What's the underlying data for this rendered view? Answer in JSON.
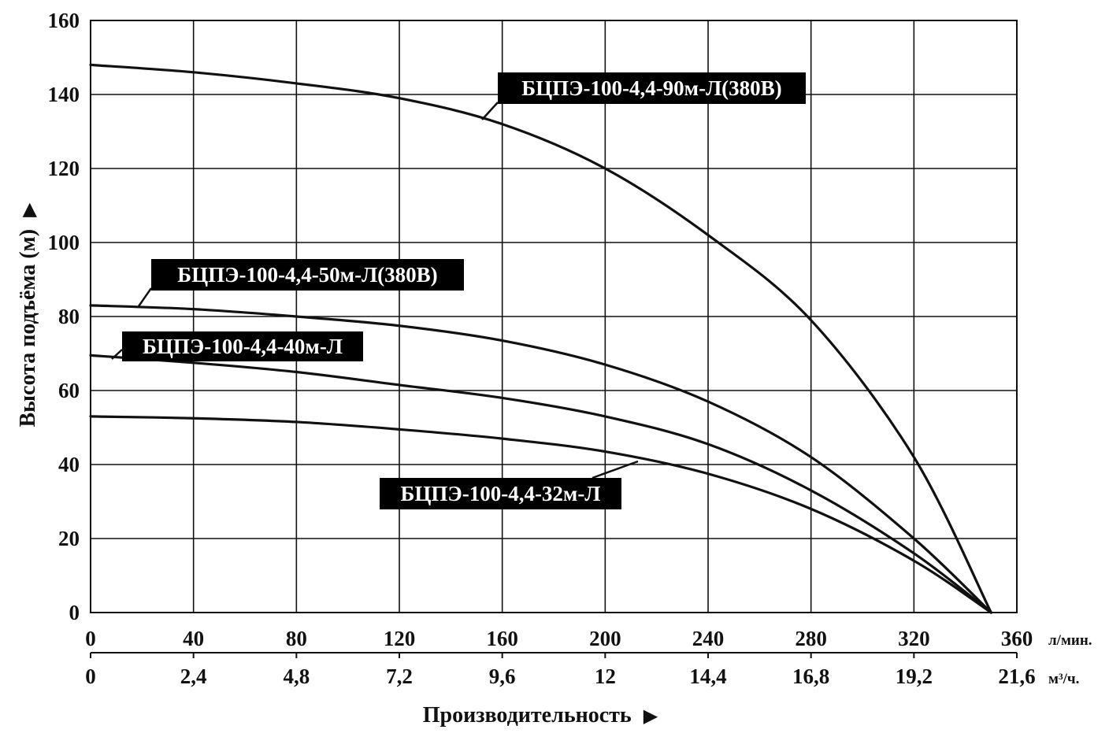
{
  "chart_data": {
    "type": "line",
    "ylabel": "Высота подъёма (м)",
    "ylabel_arrow": "▶",
    "xlabel": "Производительность",
    "xlabel_arrow": "▶",
    "ylim": [
      0,
      160
    ],
    "xlim": [
      0,
      360
    ],
    "grid": true,
    "y_ticks": [
      "0",
      "20",
      "40",
      "60",
      "80",
      "100",
      "120",
      "140",
      "160"
    ],
    "x_ticks_lpm": [
      "0",
      "40",
      "80",
      "120",
      "160",
      "200",
      "240",
      "280",
      "320",
      "360"
    ],
    "x_unit_lpm": "л/мин.",
    "x_ticks_m3h": [
      "0",
      "2,4",
      "4,8",
      "7,2",
      "9,6",
      "12",
      "14,4",
      "16,8",
      "19,2",
      "21,6"
    ],
    "x_unit_m3h": "м³/ч.",
    "series": [
      {
        "name": "БЦПЭ-100-4,4-90м-Л(380В)",
        "x": [
          0,
          40,
          80,
          120,
          160,
          200,
          240,
          280,
          320,
          350
        ],
        "y": [
          148,
          146,
          143,
          139,
          132,
          120,
          102,
          79,
          42,
          0
        ]
      },
      {
        "name": "БЦПЭ-100-4,4-50м-Л(380В)",
        "x": [
          0,
          40,
          80,
          120,
          160,
          200,
          240,
          280,
          320,
          350
        ],
        "y": [
          83,
          82,
          80,
          77.5,
          73.5,
          67,
          57,
          42,
          20,
          0
        ]
      },
      {
        "name": "БЦПЭ-100-4,4-40м-Л",
        "x": [
          0,
          40,
          80,
          120,
          160,
          200,
          240,
          280,
          320,
          350
        ],
        "y": [
          69.5,
          67.5,
          65,
          61.5,
          58,
          53,
          45.5,
          33,
          16,
          0
        ]
      },
      {
        "name": "БЦПЭ-100-4,4-32м-Л",
        "x": [
          0,
          40,
          80,
          120,
          160,
          200,
          240,
          280,
          320,
          350
        ],
        "y": [
          53,
          52.5,
          51.5,
          49.5,
          47,
          43.5,
          37.5,
          28,
          14,
          0
        ]
      }
    ]
  }
}
